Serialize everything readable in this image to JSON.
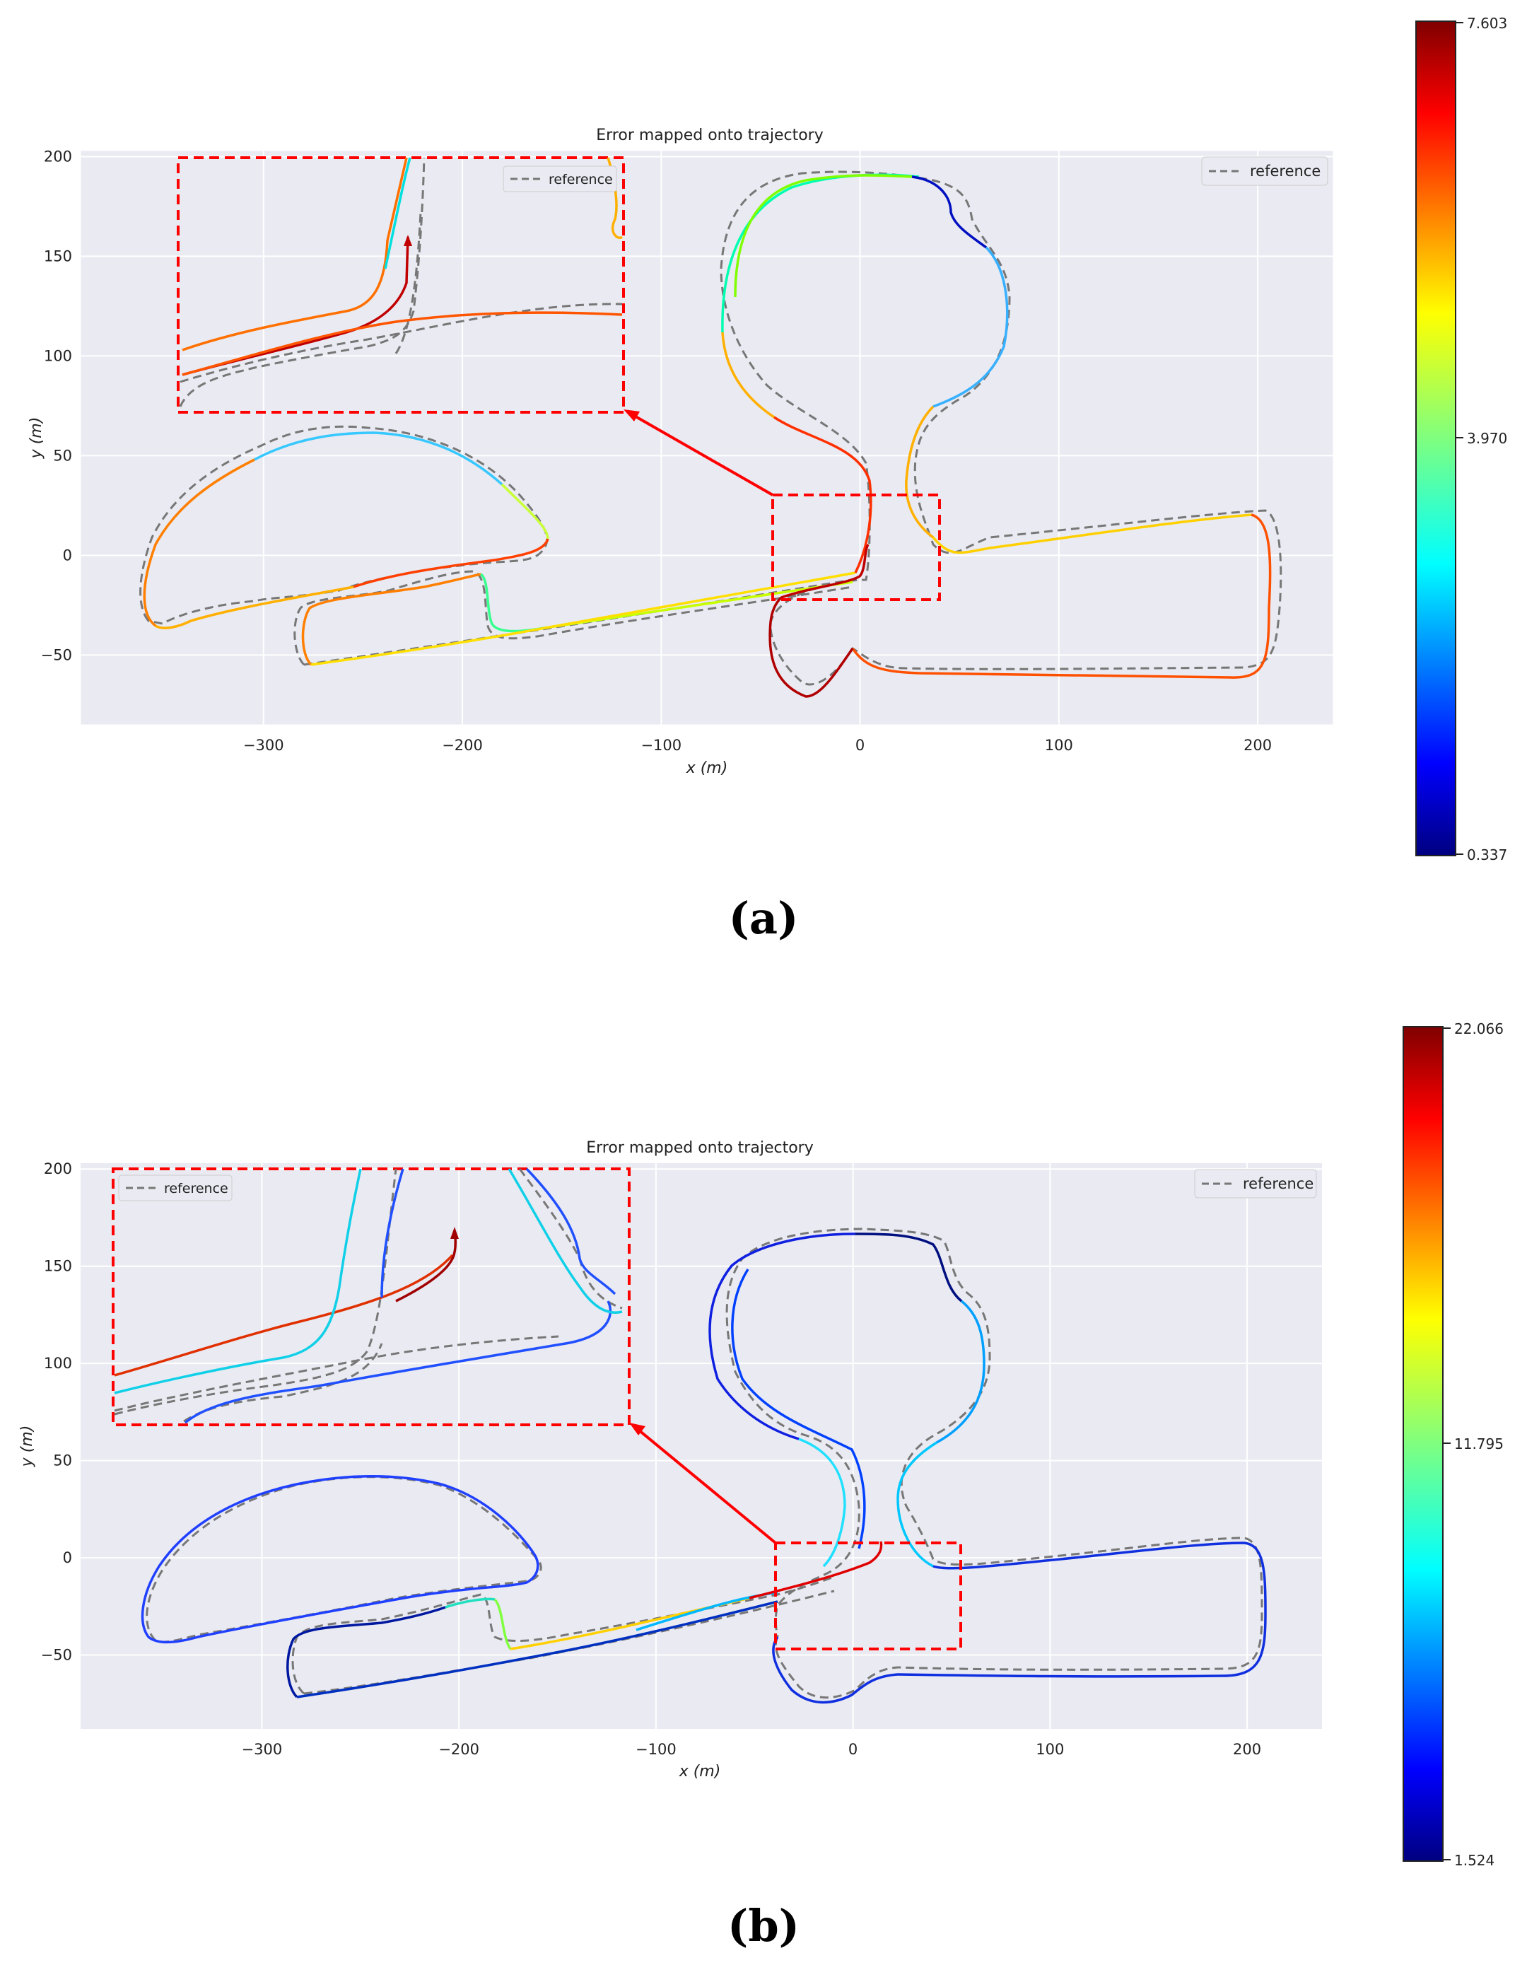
{
  "figure": {
    "panels": [
      {
        "caption": "(a)",
        "colorbar": {
          "max_label": "7.603",
          "mid_label": "3.970",
          "min_label": "0.337",
          "colormap": "jet",
          "vmin": 0.337,
          "vmax": 7.603
        }
      },
      {
        "caption": "(b)",
        "colorbar": {
          "max_label": "22.066",
          "mid_label": "11.795",
          "min_label": "1.524",
          "colormap": "jet",
          "vmin": 1.524,
          "vmax": 22.066
        }
      }
    ]
  },
  "chart_data": [
    {
      "type": "line",
      "title": "Error mapped onto trajectory",
      "xlabel": "x (m)",
      "ylabel": "y (m)",
      "xlim": [
        -392,
        238
      ],
      "ylim": [
        -85,
        203
      ],
      "xticks": [
        -300,
        -200,
        -100,
        0,
        100,
        200
      ],
      "yticks": [
        -50,
        0,
        50,
        100,
        150,
        200
      ],
      "xtick_labels": [
        "−300",
        "−200",
        "−100",
        "0",
        "100",
        "200"
      ],
      "ytick_labels": [
        "−50",
        "0",
        "50",
        "100",
        "150",
        "200"
      ],
      "grid": true,
      "legend": "top-right",
      "legend_label": "reference",
      "inset_legend_label": "reference",
      "background": "#eaeaf2",
      "reference": [
        [
          0,
          -60
        ],
        [
          -15,
          -70
        ],
        [
          -25,
          -65
        ],
        [
          -38,
          -50
        ],
        [
          -40,
          -30
        ],
        [
          -30,
          -20
        ],
        [
          -10,
          -15
        ],
        [
          3,
          -10
        ],
        [
          6,
          5
        ],
        [
          3,
          30
        ],
        [
          -5,
          50
        ],
        [
          -30,
          65
        ],
        [
          -55,
          80
        ],
        [
          -60,
          110
        ],
        [
          -58,
          150
        ],
        [
          -45,
          180
        ],
        [
          -20,
          190
        ],
        [
          10,
          190
        ],
        [
          30,
          185
        ],
        [
          45,
          175
        ],
        [
          55,
          150
        ],
        [
          55,
          120
        ],
        [
          45,
          90
        ],
        [
          28,
          65
        ],
        [
          20,
          30
        ],
        [
          25,
          5
        ],
        [
          35,
          -5
        ],
        [
          55,
          0
        ],
        [
          100,
          10
        ],
        [
          150,
          20
        ],
        [
          190,
          25
        ],
        [
          205,
          10
        ],
        [
          208,
          -20
        ],
        [
          205,
          -50
        ],
        [
          185,
          -60
        ],
        [
          100,
          -60
        ],
        [
          40,
          -58
        ],
        [
          15,
          -58
        ],
        [
          5,
          -58
        ],
        [
          0,
          -60
        ]
      ],
      "reference_lower": [
        [
          -200,
          -42
        ],
        [
          -150,
          -35
        ],
        [
          -100,
          -25
        ],
        [
          -50,
          -15
        ],
        [
          0,
          -5
        ]
      ],
      "reference_loop_left": [
        [
          -360,
          -30
        ],
        [
          -340,
          -20
        ],
        [
          -300,
          -15
        ],
        [
          -270,
          -12
        ],
        [
          -240,
          -18
        ],
        [
          -210,
          -8
        ],
        [
          -180,
          -2
        ],
        [
          -160,
          5
        ],
        [
          -162,
          15
        ],
        [
          -175,
          30
        ],
        [
          -200,
          50
        ],
        [
          -250,
          62
        ],
        [
          -300,
          55
        ],
        [
          -340,
          25
        ],
        [
          -365,
          -10
        ],
        [
          -360,
          -30
        ]
      ],
      "reference_loop_bottom": [
        [
          -260,
          -55
        ],
        [
          -280,
          -45
        ],
        [
          -280,
          -30
        ],
        [
          -260,
          -25
        ],
        [
          -230,
          -22
        ],
        [
          -200,
          -12
        ],
        [
          -190,
          -15
        ],
        [
          -190,
          -30
        ],
        [
          -185,
          -45
        ],
        [
          -170,
          -45
        ],
        [
          -120,
          -38
        ],
        [
          -80,
          -28
        ],
        [
          -40,
          -18
        ],
        [
          -10,
          -10
        ],
        [
          0,
          -5
        ]
      ],
      "reference_bottom_return": [
        [
          -260,
          -55
        ],
        [
          -200,
          -45
        ],
        [
          -150,
          -40
        ],
        [
          -100,
          -32
        ],
        [
          -50,
          -22
        ],
        [
          0,
          -12
        ]
      ],
      "estimate": {
        "color_values": [
          0.9,
          0.7,
          0.5,
          0.6,
          0.8,
          0.4,
          0.3,
          0.2,
          0.7,
          0.9
        ]
      },
      "inset": {
        "zoom_region": {
          "x": [
            -45,
            38
          ],
          "y": [
            -22,
            30
          ]
        },
        "placed_at": {
          "x": [
            -345,
            -120
          ],
          "y": [
            72,
            200
          ]
        }
      },
      "colorbar_range": [
        0.337,
        7.603
      ]
    },
    {
      "type": "line",
      "title": "Error mapped onto trajectory",
      "xlabel": "x (m)",
      "ylabel": "y (m)",
      "xlim": [
        -392,
        238
      ],
      "ylim": [
        -88,
        203
      ],
      "xticks": [
        -300,
        -200,
        -100,
        0,
        100,
        200
      ],
      "yticks": [
        -50,
        0,
        50,
        100,
        150,
        200
      ],
      "xtick_labels": [
        "−300",
        "−200",
        "−100",
        "0",
        "100",
        "200"
      ],
      "ytick_labels": [
        "−50",
        "0",
        "50",
        "100",
        "150",
        "200"
      ],
      "grid": true,
      "legend": "top-right",
      "legend_label": "reference",
      "inset_legend_label": "reference",
      "background": "#eaeaf2",
      "inset": {
        "zoom_region": {
          "x": [
            -40,
            53
          ],
          "y": [
            -23,
            30
          ]
        },
        "placed_at": {
          "x": [
            -375,
            -115
          ],
          "y": [
            70,
            200
          ]
        }
      },
      "colorbar_range": [
        1.524,
        22.066
      ]
    }
  ]
}
